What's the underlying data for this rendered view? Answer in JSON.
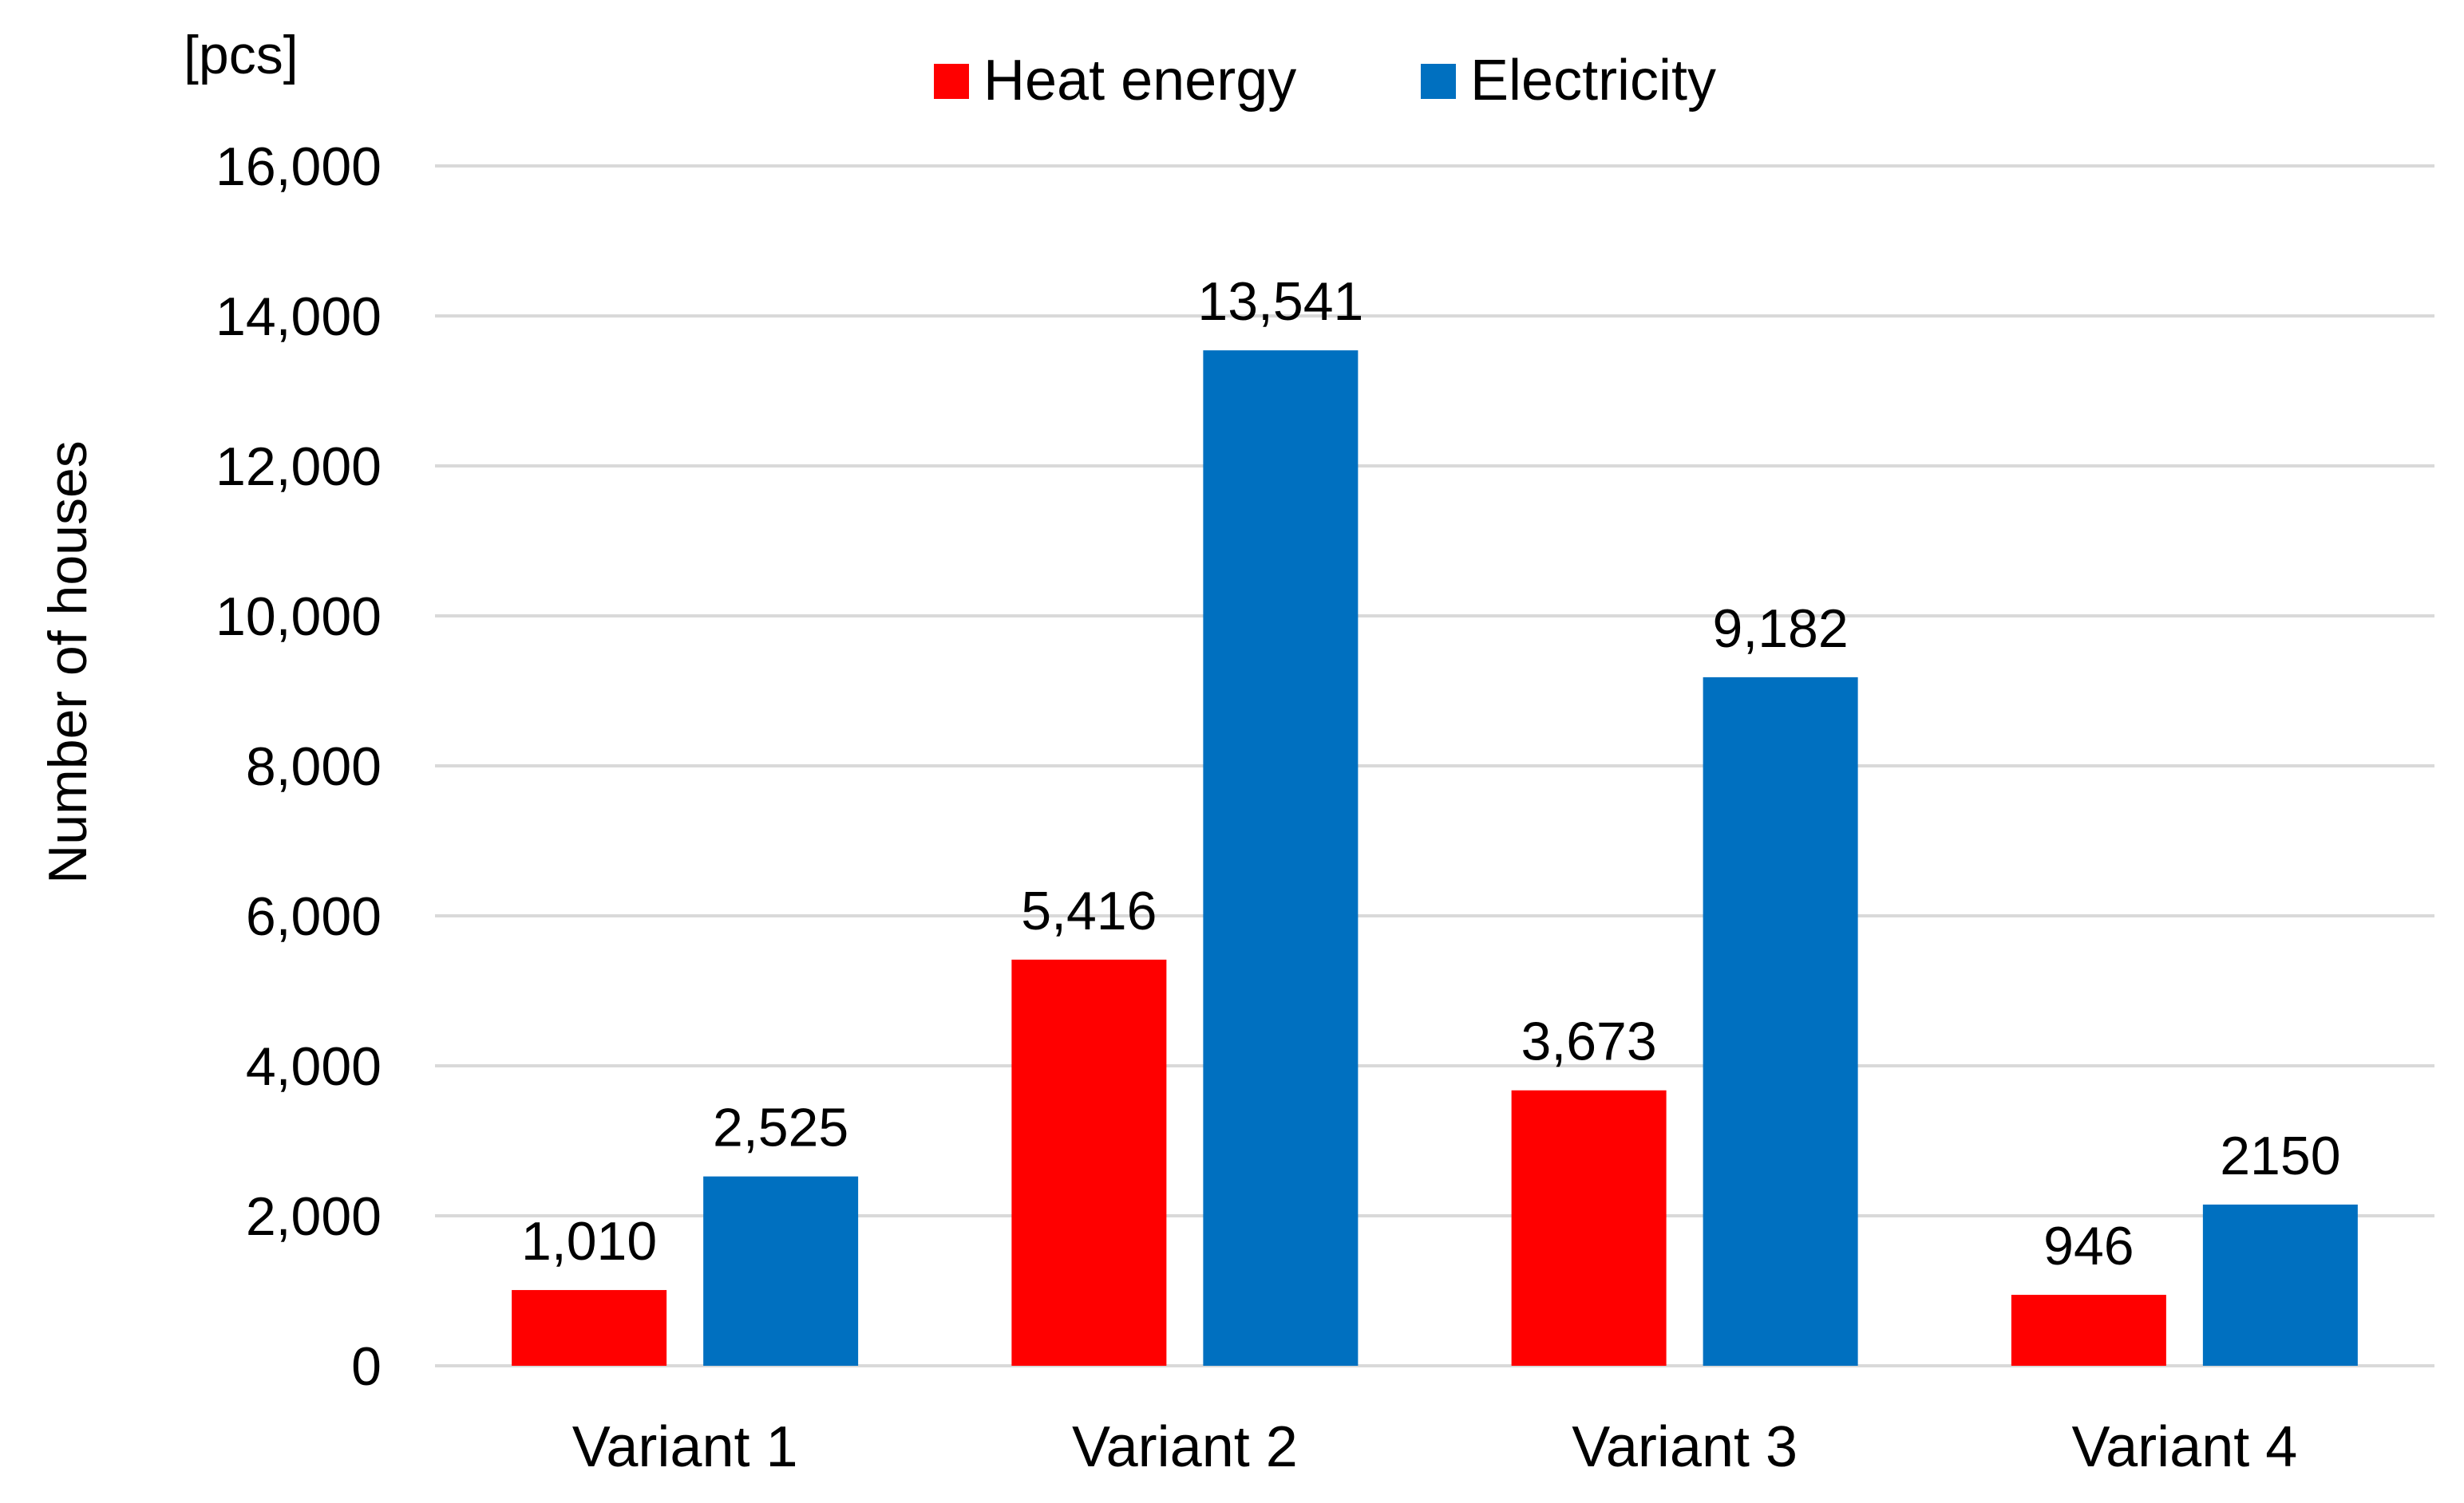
{
  "chart_data": {
    "type": "bar",
    "title": "",
    "unit_label": "[pcs]",
    "ylabel": "Number of houses",
    "xlabel": "",
    "ylim": [
      0,
      16000
    ],
    "yticks": [
      0,
      2000,
      4000,
      6000,
      8000,
      10000,
      12000,
      14000,
      16000
    ],
    "ytick_labels": [
      "0",
      "2,000",
      "4,000",
      "6,000",
      "8,000",
      "10,000",
      "12,000",
      "14,000",
      "16,000"
    ],
    "grid": true,
    "legend_position": "top-center",
    "categories": [
      "Variant 1",
      "Variant 2",
      "Variant 3",
      "Variant 4"
    ],
    "series": [
      {
        "name": "Heat energy",
        "color": "#FF0000",
        "values": [
          1010,
          5416,
          3673,
          946
        ],
        "labels": [
          "1,010",
          "5,416",
          "3,673",
          "946"
        ]
      },
      {
        "name": "Electricity",
        "color": "#0070C0",
        "values": [
          2525,
          13541,
          9182,
          2150
        ],
        "labels": [
          "2,525",
          "13,541",
          "9,182",
          "2150"
        ]
      }
    ],
    "gridline_color": "#D9D9D9"
  }
}
